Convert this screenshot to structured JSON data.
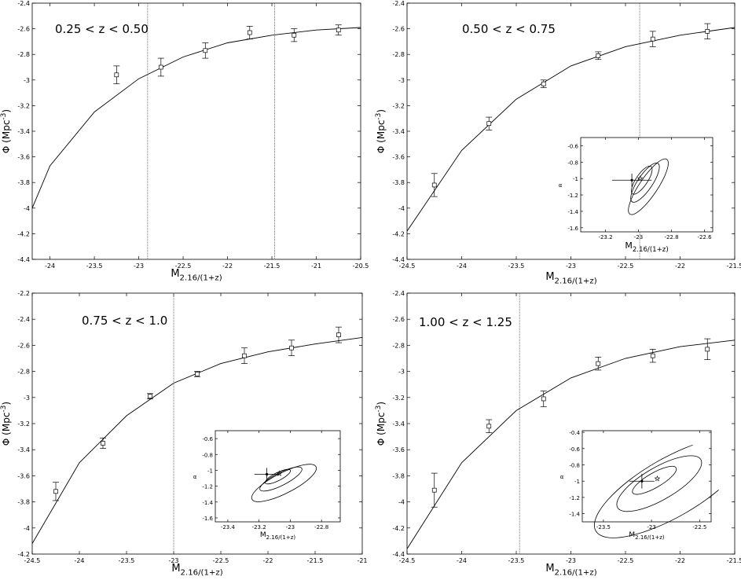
{
  "figure": {
    "xlabel_main": "M",
    "xlabel_sub": "2.16/(1+z)",
    "ylabel": "Φ (Mpc",
    "ylabel_sup": "-3",
    "ylabel_close": ")"
  },
  "chart_data": [
    {
      "type": "line",
      "panel_label": "0.25 < z < 0.50",
      "xlim": [
        -24.2,
        -20.5
      ],
      "ylim": [
        -4.4,
        -2.4
      ],
      "xticks": [
        -24,
        -23.5,
        -23,
        -22.5,
        -22,
        -21.5,
        -21,
        -20.5
      ],
      "xtick_labels": [
        "-24",
        "-23.5",
        "-23",
        "-22.5",
        "-22",
        "-21.5",
        "-21",
        "-20.5"
      ],
      "yticks": [
        -4.4,
        -4.2,
        -4,
        -3.8,
        -3.6,
        -3.4,
        -3.2,
        -3,
        -2.8,
        -2.6,
        -2.4
      ],
      "ytick_labels": [
        "-4.4",
        "-4.2",
        "-4",
        "-3.8",
        "-3.6",
        "-3.4",
        "-3.2",
        "-3",
        "-2.8",
        "-2.6",
        "-2.4"
      ],
      "model_curve": {
        "x": [
          -24.2,
          -24.0,
          -23.5,
          -23.0,
          -22.5,
          -22.0,
          -21.5,
          -21.0,
          -20.5
        ],
        "y": [
          -4.0,
          -3.67,
          -3.25,
          -2.99,
          -2.82,
          -2.71,
          -2.65,
          -2.61,
          -2.59
        ]
      },
      "data_points": {
        "x": [
          -23.25,
          -22.75,
          -22.25,
          -21.75,
          -21.25,
          -20.75
        ],
        "y": [
          -2.96,
          -2.9,
          -2.77,
          -2.63,
          -2.65,
          -2.61
        ],
        "err": [
          0.07,
          0.07,
          0.06,
          0.05,
          0.05,
          0.04
        ]
      },
      "vlines": [
        -22.9,
        -21.47
      ]
    },
    {
      "type": "line",
      "panel_label": "0.50 < z < 0.75",
      "xlim": [
        -24.5,
        -21.5
      ],
      "ylim": [
        -4.4,
        -2.4
      ],
      "xticks": [
        -24.5,
        -24,
        -23.5,
        -23,
        -22.5,
        -22,
        -21.5
      ],
      "xtick_labels": [
        "-24.5",
        "-24",
        "-23.5",
        "-23",
        "-22.5",
        "-22",
        "-21.5"
      ],
      "yticks": [
        -4.4,
        -4.2,
        -4,
        -3.8,
        -3.6,
        -3.4,
        -3.2,
        -3,
        -2.8,
        -2.6,
        -2.4
      ],
      "ytick_labels": [
        "-4.4",
        "-4.2",
        "-4",
        "-3.8",
        "-3.6",
        "-3.4",
        "-3.2",
        "-3",
        "-2.8",
        "-2.6",
        "-2.4"
      ],
      "model_curve": {
        "x": [
          -24.5,
          -24.0,
          -23.5,
          -23.0,
          -22.5,
          -22.0,
          -21.5
        ],
        "y": [
          -4.18,
          -3.55,
          -3.15,
          -2.89,
          -2.74,
          -2.65,
          -2.59
        ]
      },
      "data_points": {
        "x": [
          -24.25,
          -23.75,
          -23.25,
          -22.75,
          -22.25,
          -21.75
        ],
        "y": [
          -3.82,
          -3.34,
          -3.03,
          -2.81,
          -2.68,
          -2.62
        ],
        "err": [
          0.09,
          0.05,
          0.03,
          0.03,
          0.06,
          0.06
        ]
      },
      "vlines": [
        -22.37
      ],
      "inset": {
        "xlim": [
          -23.35,
          -22.55
        ],
        "ylim": [
          -1.65,
          -0.5
        ],
        "xticks": [
          -23.2,
          -23,
          -22.8,
          -22.6
        ],
        "xtick_labels": [
          "-23.2",
          "-23",
          "-22.8",
          "-22.6"
        ],
        "yticks": [
          -1.6,
          -1.4,
          -1.2,
          -1,
          -0.8,
          -0.6
        ],
        "ytick_labels": [
          "-1.6",
          "-1.4",
          "-1.2",
          "-1",
          "-0.8",
          "-0.6"
        ],
        "xlabel_main": "M",
        "xlabel_sub": "2.16/(1+z)",
        "ylabel": "α",
        "best_fit": {
          "x": -23.04,
          "y": -1.02,
          "xerr": 0.12,
          "yerr": 0.08
        },
        "star": {
          "x": -22.99,
          "y": -1.0
        },
        "contours": [
          {
            "cx": -22.98,
            "cy": -1.02,
            "rx": 0.1,
            "ry": 0.07,
            "rot": -56
          },
          {
            "cx": -22.96,
            "cy": -1.05,
            "rx": 0.14,
            "ry": 0.09,
            "rot": -56
          },
          {
            "cx": -22.94,
            "cy": -1.1,
            "rx": 0.2,
            "ry": 0.11,
            "rot": -56
          }
        ]
      }
    },
    {
      "type": "line",
      "panel_label": "0.75 < z < 1.0",
      "xlim": [
        -24.5,
        -21
      ],
      "ylim": [
        -4.2,
        -2.2
      ],
      "xticks": [
        -24.5,
        -24,
        -23.5,
        -23,
        -22.5,
        -22,
        -21.5,
        -21
      ],
      "xtick_labels": [
        "-24.5",
        "-24",
        "-23.5",
        "-23",
        "-22.5",
        "-22",
        "-21.5",
        "-21"
      ],
      "yticks": [
        -4.2,
        -4,
        -3.8,
        -3.6,
        -3.4,
        -3.2,
        -3,
        -2.8,
        -2.6,
        -2.4,
        -2.2
      ],
      "ytick_labels": [
        "-4.2",
        "-4",
        "-3.8",
        "-3.6",
        "-3.4",
        "-3.2",
        "-3",
        "-2.8",
        "-2.6",
        "-2.4",
        "-2.2"
      ],
      "model_curve": {
        "x": [
          -24.5,
          -24.0,
          -23.5,
          -23.0,
          -22.5,
          -22.0,
          -21.5,
          -21.0
        ],
        "y": [
          -4.12,
          -3.5,
          -3.14,
          -2.89,
          -2.74,
          -2.65,
          -2.59,
          -2.54
        ]
      },
      "data_points": {
        "x": [
          -24.25,
          -23.75,
          -23.25,
          -22.75,
          -22.25,
          -21.75,
          -21.25
        ],
        "y": [
          -3.72,
          -3.35,
          -2.99,
          -2.82,
          -2.68,
          -2.62,
          -2.52
        ],
        "err": [
          0.07,
          0.04,
          0.02,
          0.02,
          0.06,
          0.06,
          0.06
        ]
      },
      "vlines": [
        -23.0
      ],
      "inset": {
        "xlim": [
          -23.48,
          -22.68
        ],
        "ylim": [
          -1.65,
          -0.5
        ],
        "xticks": [
          -23.4,
          -23.2,
          -23,
          -22.8
        ],
        "xtick_labels": [
          "-23.4",
          "-23.2",
          "-23",
          "-22.8"
        ],
        "yticks": [
          -1.6,
          -1.4,
          -1.2,
          -1,
          -0.8,
          -0.6
        ],
        "ytick_labels": [
          "-1.6",
          "-1.4",
          "-1.2",
          "-1",
          "-0.8",
          "-0.6"
        ],
        "xlabel_main": "M",
        "xlabel_sub": "2.16/(1+z)",
        "ylabel": "α",
        "best_fit": {
          "x": -23.15,
          "y": -1.05,
          "xerr": 0.08,
          "yerr": 0.08
        },
        "star": {
          "x": -23.07,
          "y": -1.04
        },
        "contours": [
          {
            "cx": -23.08,
            "cy": -1.08,
            "rx": 0.09,
            "ry": 0.05,
            "rot": -27
          },
          {
            "cx": -23.06,
            "cy": -1.11,
            "rx": 0.15,
            "ry": 0.08,
            "rot": -27
          },
          {
            "cx": -23.04,
            "cy": -1.16,
            "rx": 0.23,
            "ry": 0.13,
            "rot": -27
          }
        ]
      }
    },
    {
      "type": "line",
      "panel_label": "1.00 < z < 1.25",
      "xlim": [
        -24.5,
        -21.5
      ],
      "ylim": [
        -4.4,
        -2.4
      ],
      "xticks": [
        -24.5,
        -24,
        -23.5,
        -23,
        -22.5,
        -22,
        -21.5
      ],
      "xtick_labels": [
        "-24.5",
        "-24",
        "-23.5",
        "-23",
        "-22.5",
        "-22",
        "-21.5"
      ],
      "yticks": [
        -4.4,
        -4.2,
        -4,
        -3.8,
        -3.6,
        -3.4,
        -3.2,
        -3,
        -2.8,
        -2.6,
        -2.4
      ],
      "ytick_labels": [
        "-4.4",
        "-4.2",
        "-4",
        "-3.8",
        "-3.6",
        "-3.4",
        "-3.2",
        "-3",
        "-2.8",
        "-2.6",
        "-2.4"
      ],
      "model_curve": {
        "x": [
          -24.5,
          -24.0,
          -23.5,
          -23.0,
          -22.5,
          -22.0,
          -21.5
        ],
        "y": [
          -4.36,
          -3.7,
          -3.3,
          -3.05,
          -2.9,
          -2.81,
          -2.76
        ]
      },
      "data_points": {
        "x": [
          -24.25,
          -23.75,
          -23.25,
          -22.75,
          -22.25,
          -21.75
        ],
        "y": [
          -3.91,
          -3.42,
          -3.21,
          -2.94,
          -2.88,
          -2.83
        ],
        "err": [
          0.13,
          0.05,
          0.06,
          0.05,
          0.05,
          0.08
        ]
      },
      "vlines": [
        -23.47
      ],
      "inset": {
        "xlim": [
          -23.72,
          -22.38
        ],
        "ylim": [
          -1.5,
          -0.38
        ],
        "xticks": [
          -23.5,
          -23,
          -22.5
        ],
        "xtick_labels": [
          "-23.5",
          "-23",
          "-22.5"
        ],
        "yticks": [
          -1.4,
          -1.2,
          -1,
          -0.8,
          -0.6,
          -0.4
        ],
        "ytick_labels": [
          "-1.4",
          "-1.2",
          "-1",
          "-0.8",
          "-0.6",
          "-0.4"
        ],
        "xlabel_main": "M",
        "xlabel_sub": "2.16/(1+z)",
        "ylabel": "α",
        "best_fit": {
          "x": -23.1,
          "y": -1.0,
          "xerr": 0.13,
          "yerr": 0.09
        },
        "star": {
          "x": -22.94,
          "y": -0.97
        },
        "contours": [
          {
            "cx": -22.97,
            "cy": -0.99,
            "rx": 0.26,
            "ry": 0.09,
            "rot": -30
          },
          {
            "cx": -22.92,
            "cy": -1.03,
            "rx": 0.5,
            "ry": 0.2,
            "rot": -30
          },
          {
            "cx": -22.8,
            "cy": -1.08,
            "rx": 0.9,
            "ry": 0.36,
            "rot": -30
          }
        ]
      }
    }
  ]
}
